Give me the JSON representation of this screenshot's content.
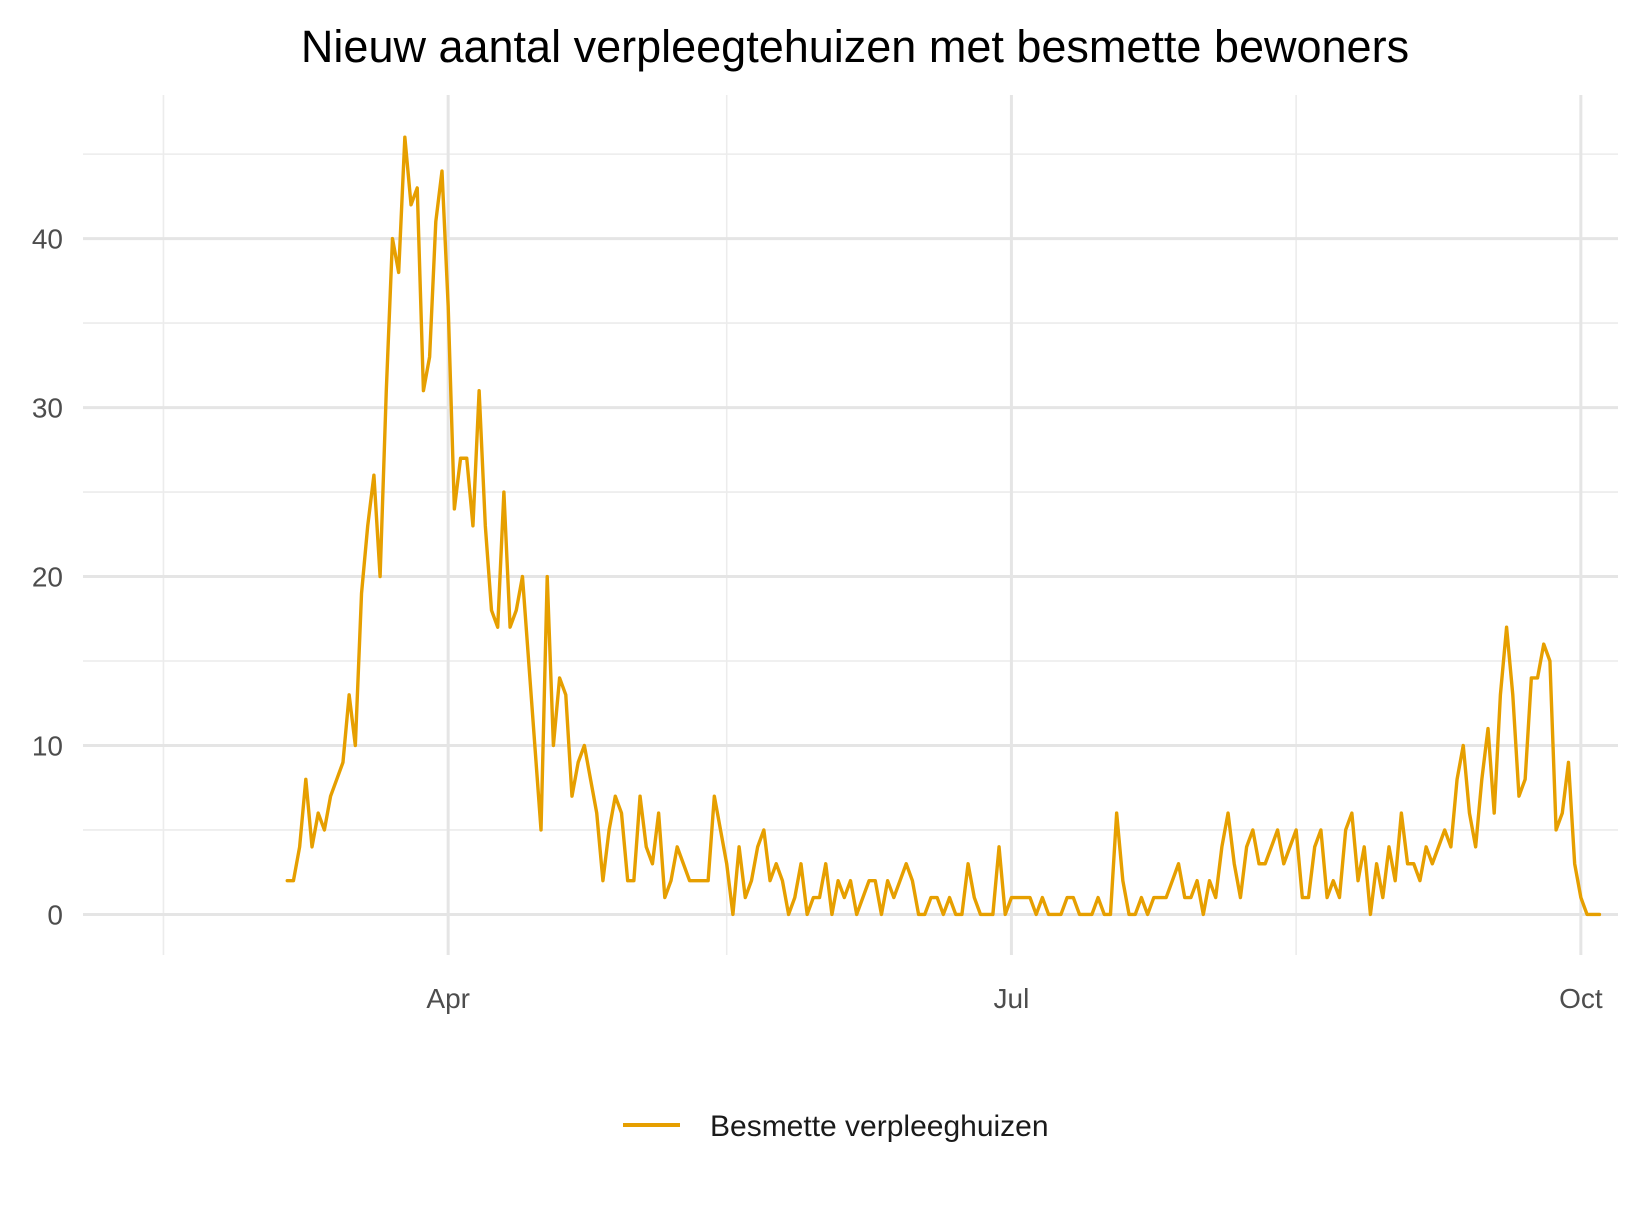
{
  "chart_data": {
    "type": "line",
    "title": "Nieuw aantal verpleegtehuizen met besmette bewoners",
    "xlabel": "",
    "ylabel": "",
    "x_start_date": "2020-03-06",
    "x_unit": "day",
    "x_ticks": [
      {
        "label": "Apr",
        "date": "2020-04-01",
        "day_index": 26
      },
      {
        "label": "Jul",
        "date": "2020-07-01",
        "day_index": 117
      },
      {
        "label": "Oct",
        "date": "2020-10-01",
        "day_index": 209
      }
    ],
    "x_minor_day_index": [
      -20,
      71,
      163
    ],
    "xlim": [
      -33,
      215
    ],
    "y_ticks": [
      0,
      10,
      20,
      30,
      40
    ],
    "y_minor": [
      5,
      15,
      25,
      35,
      45
    ],
    "ylim": [
      -2.4,
      48.5
    ],
    "legend_position": "bottom",
    "series": [
      {
        "name": "Besmette verpleeghuizen",
        "color": "#E69F00",
        "values": [
          2,
          2,
          4,
          8,
          4,
          6,
          5,
          7,
          8,
          9,
          13,
          10,
          19,
          23,
          26,
          20,
          31,
          40,
          38,
          46,
          42,
          43,
          31,
          33,
          41,
          44,
          36,
          24,
          27,
          27,
          23,
          31,
          23,
          18,
          17,
          25,
          17,
          18,
          20,
          15,
          10,
          5,
          20,
          10,
          14,
          13,
          7,
          9,
          10,
          8,
          6,
          2,
          5,
          7,
          6,
          2,
          2,
          7,
          4,
          3,
          6,
          1,
          2,
          4,
          3,
          2,
          2,
          2,
          2,
          7,
          5,
          3,
          0,
          4,
          1,
          2,
          4,
          5,
          2,
          3,
          2,
          0,
          1,
          3,
          0,
          1,
          1,
          3,
          0,
          2,
          1,
          2,
          0,
          1,
          2,
          2,
          0,
          2,
          1,
          2,
          3,
          2,
          0,
          0,
          1,
          1,
          0,
          1,
          0,
          0,
          3,
          1,
          0,
          0,
          0,
          4,
          0,
          1,
          1,
          1,
          1,
          0,
          1,
          0,
          0,
          0,
          1,
          1,
          0,
          0,
          0,
          1,
          0,
          0,
          6,
          2,
          0,
          0,
          1,
          0,
          1,
          1,
          1,
          2,
          3,
          1,
          1,
          2,
          0,
          2,
          1,
          4,
          6,
          3,
          1,
          4,
          5,
          3,
          3,
          4,
          5,
          3,
          4,
          5,
          1,
          1,
          4,
          5,
          1,
          2,
          1,
          5,
          6,
          2,
          4,
          0,
          3,
          1,
          4,
          2,
          6,
          3,
          3,
          2,
          4,
          3,
          4,
          5,
          4,
          8,
          10,
          6,
          4,
          8,
          11,
          6,
          13,
          17,
          13,
          7,
          8,
          14,
          14,
          16,
          15,
          5,
          6,
          9,
          3,
          1,
          0,
          0,
          0
        ]
      }
    ]
  }
}
